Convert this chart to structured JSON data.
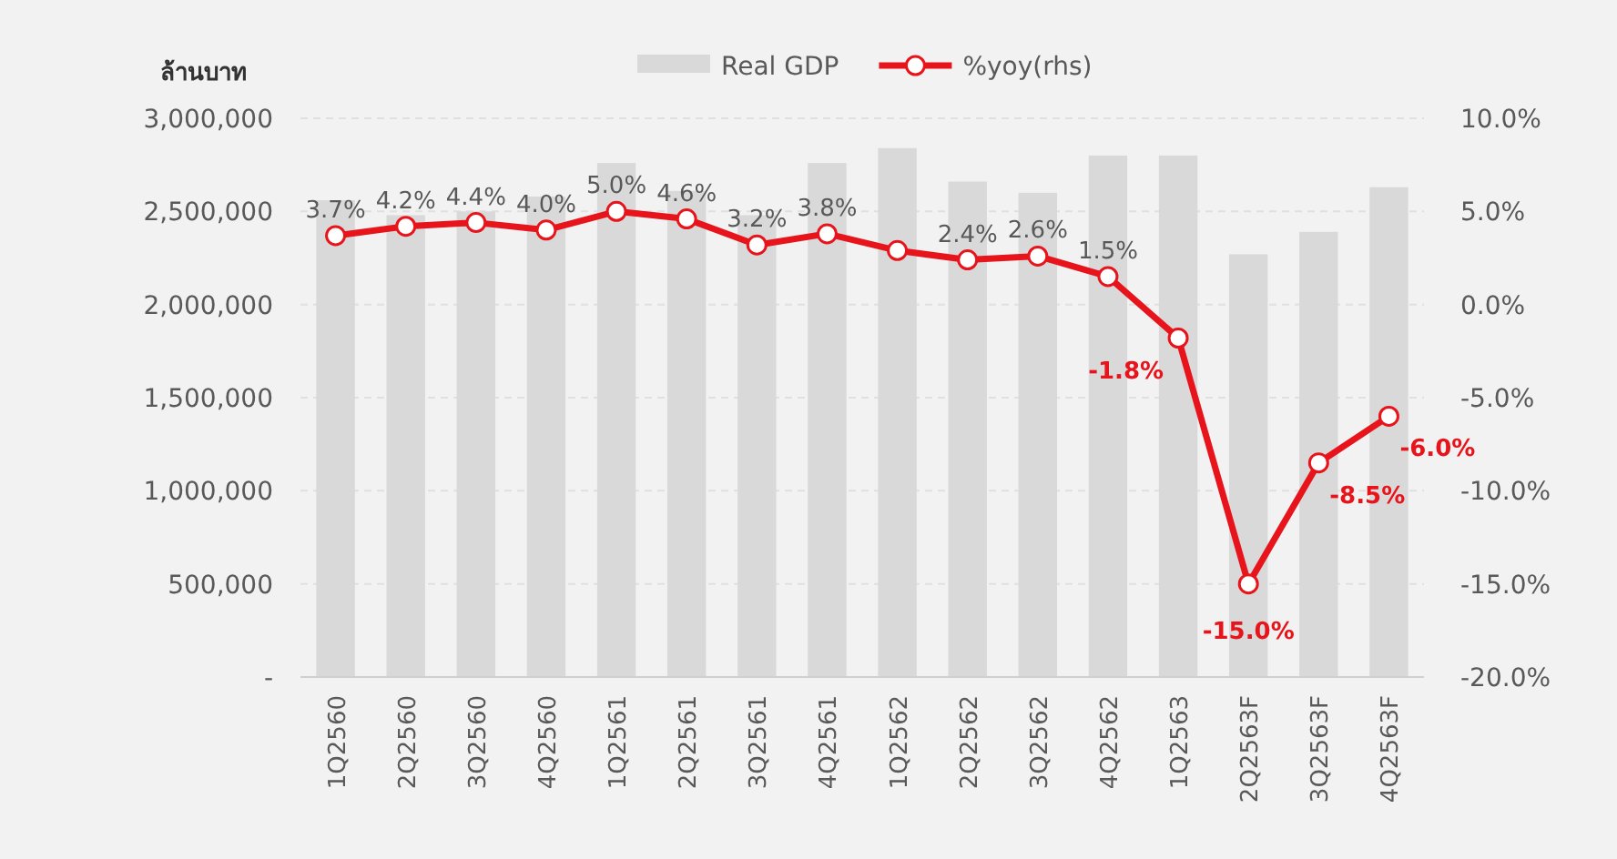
{
  "chart_data": {
    "type": "bar",
    "ylabel": "ล้านบาท",
    "categories": [
      "1Q2560",
      "2Q2560",
      "3Q2560",
      "4Q2560",
      "1Q2561",
      "2Q2561",
      "3Q2561",
      "4Q2561",
      "1Q2562",
      "2Q2562",
      "3Q2562",
      "4Q2562",
      "1Q2563",
      "2Q2563F",
      "3Q2563F",
      "4Q2563F"
    ],
    "series": [
      {
        "name": "Real GDP",
        "color": "#d9d9d9",
        "values": [
          2560000,
          2480000,
          2500000,
          2580000,
          2760000,
          2610000,
          2480000,
          2760000,
          2840000,
          2660000,
          2600000,
          2800000,
          2800000,
          2270000,
          2390000,
          2630000
        ]
      },
      {
        "name": "%yoy(rhs)",
        "type": "line",
        "axis": "y2",
        "color": "#e8141b",
        "marker": "circle",
        "values": [
          3.7,
          4.2,
          4.4,
          4.0,
          5.0,
          4.6,
          3.2,
          3.8,
          2.9,
          2.4,
          2.6,
          1.5,
          -1.8,
          -15.0,
          -8.5,
          -6.0
        ],
        "value_labels": [
          "3.7%",
          "4.2%",
          "4.4%",
          "4.0%",
          "5.0%",
          "4.6%",
          "3.2%",
          "3.8%",
          null,
          "2.4%",
          "2.6%",
          "1.5%",
          "-1.8%",
          "-15.0%",
          "-8.5%",
          "-6.0%"
        ]
      }
    ],
    "ylim": [
      0,
      3000000
    ],
    "yticks": [
      {
        "value": 0,
        "label": "-"
      },
      {
        "value": 500000,
        "label": "500,000"
      },
      {
        "value": 1000000,
        "label": "1,000,000"
      },
      {
        "value": 1500000,
        "label": "1,500,000"
      },
      {
        "value": 2000000,
        "label": "2,000,000"
      },
      {
        "value": 2500000,
        "label": "2,500,000"
      },
      {
        "value": 3000000,
        "label": "3,000,000"
      }
    ],
    "y2lim": [
      -20,
      10
    ],
    "y2ticks": [
      {
        "value": -20,
        "label": "-20.0%"
      },
      {
        "value": -15,
        "label": "-15.0%"
      },
      {
        "value": -10,
        "label": "-10.0%"
      },
      {
        "value": -5,
        "label": "-5.0%"
      },
      {
        "value": 0,
        "label": "0.0%"
      },
      {
        "value": 5,
        "label": "5.0%"
      },
      {
        "value": 10,
        "label": "10.0%"
      }
    ],
    "grid": "y",
    "legend": "top"
  }
}
